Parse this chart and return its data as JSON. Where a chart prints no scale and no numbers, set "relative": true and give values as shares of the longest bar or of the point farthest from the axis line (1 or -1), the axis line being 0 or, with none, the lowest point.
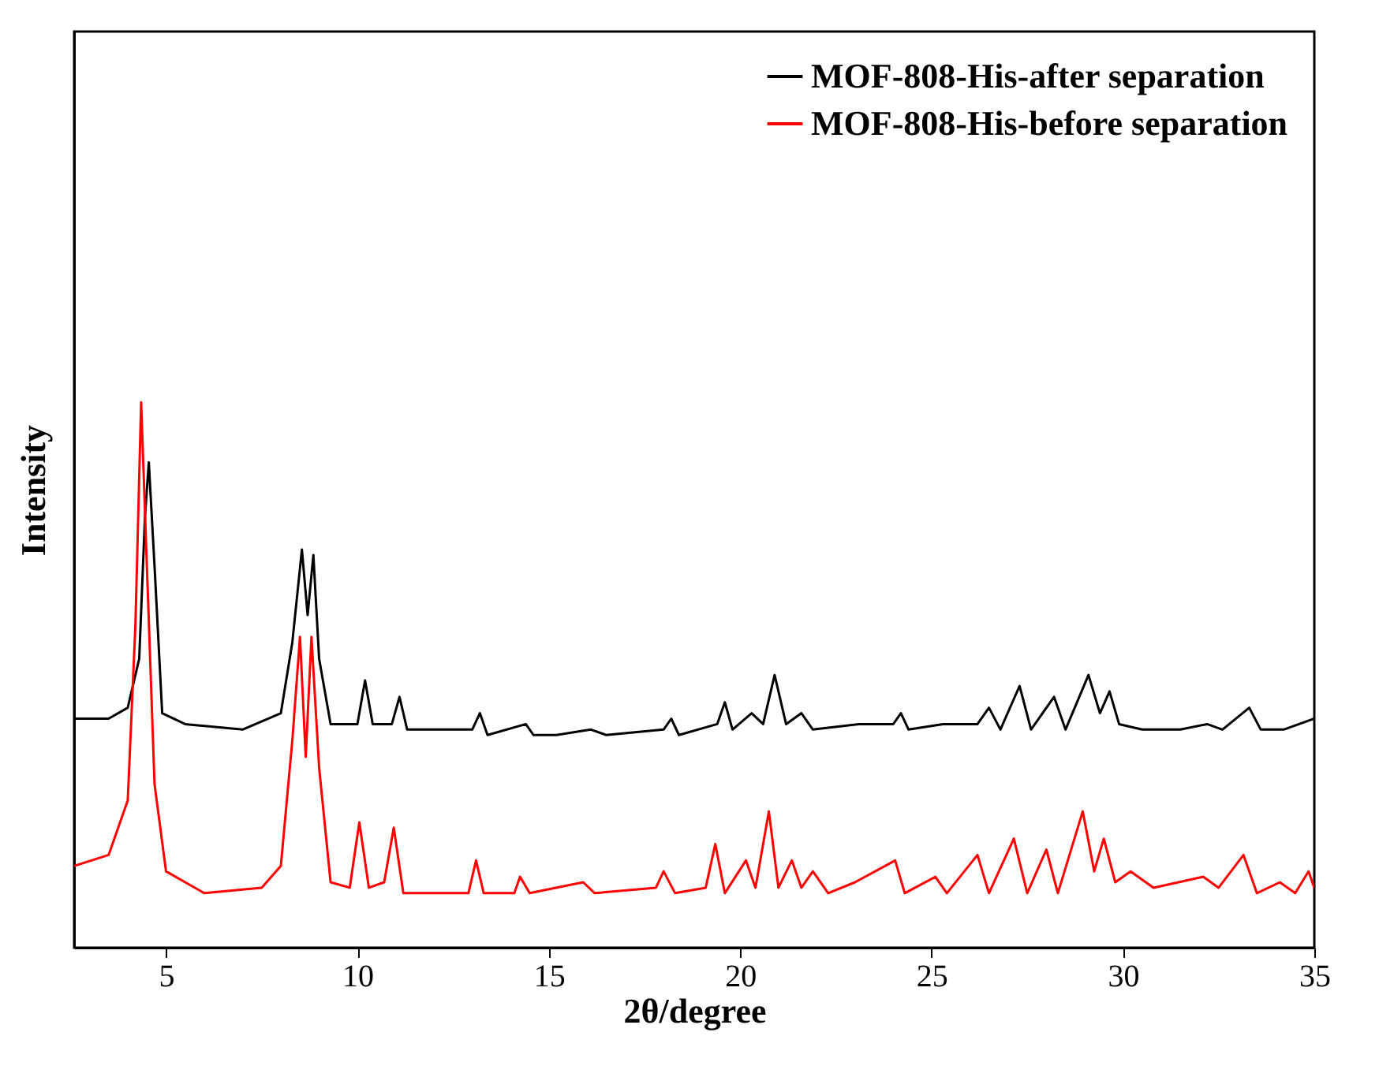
{
  "chart_data": {
    "type": "line",
    "xlabel": "2θ/degree",
    "ylabel": "Intensity",
    "relative": true,
    "xlim": [
      2.6,
      35
    ],
    "xticks": [
      5,
      10,
      15,
      20,
      25,
      30,
      35
    ],
    "grid": false,
    "legend": "top right",
    "marker": "none",
    "line_style": "solid",
    "series": [
      {
        "name": "MOF-808-His-after separation",
        "color": "#000000",
        "x": [
          2.6,
          3.5,
          4.0,
          4.3,
          4.45,
          4.55,
          4.7,
          4.9,
          5.5,
          7.0,
          8.0,
          8.3,
          8.55,
          8.7,
          8.85,
          9.0,
          9.3,
          10.0,
          10.2,
          10.4,
          10.9,
          11.1,
          11.3,
          13.0,
          13.2,
          13.4,
          14.4,
          14.6,
          15.2,
          16.1,
          16.5,
          18.0,
          18.2,
          18.4,
          19.4,
          19.6,
          19.8,
          20.3,
          20.6,
          20.9,
          21.2,
          21.6,
          21.9,
          23.1,
          24.0,
          24.2,
          24.4,
          25.3,
          26.2,
          26.5,
          26.8,
          27.3,
          27.6,
          28.2,
          28.5,
          29.1,
          29.4,
          29.65,
          29.9,
          30.5,
          31.5,
          32.2,
          32.6,
          33.3,
          33.6,
          34.2,
          35.0
        ],
        "values": [
          0.42,
          0.42,
          0.44,
          0.53,
          0.79,
          0.89,
          0.7,
          0.43,
          0.41,
          0.4,
          0.43,
          0.56,
          0.73,
          0.61,
          0.72,
          0.53,
          0.41,
          0.41,
          0.49,
          0.41,
          0.41,
          0.46,
          0.4,
          0.4,
          0.43,
          0.39,
          0.41,
          0.39,
          0.39,
          0.4,
          0.39,
          0.4,
          0.42,
          0.39,
          0.41,
          0.45,
          0.4,
          0.43,
          0.41,
          0.5,
          0.41,
          0.43,
          0.4,
          0.41,
          0.41,
          0.43,
          0.4,
          0.41,
          0.41,
          0.44,
          0.4,
          0.48,
          0.4,
          0.46,
          0.4,
          0.5,
          0.43,
          0.47,
          0.41,
          0.4,
          0.4,
          0.41,
          0.4,
          0.44,
          0.4,
          0.4,
          0.42
        ]
      },
      {
        "name": "MOF-808-His-before separation",
        "color": "#ff0000",
        "x": [
          2.6,
          3.5,
          4.0,
          4.2,
          4.35,
          4.5,
          4.7,
          5.0,
          6.0,
          7.5,
          8.0,
          8.3,
          8.5,
          8.65,
          8.8,
          9.0,
          9.3,
          9.8,
          10.05,
          10.3,
          10.7,
          10.95,
          11.2,
          12.9,
          13.1,
          13.3,
          14.1,
          14.25,
          14.5,
          15.9,
          16.2,
          17.8,
          18.0,
          18.3,
          19.1,
          19.35,
          19.6,
          20.15,
          20.4,
          20.75,
          21.0,
          21.35,
          21.6,
          21.9,
          22.3,
          23.0,
          24.05,
          24.3,
          25.1,
          25.4,
          26.2,
          26.5,
          27.15,
          27.5,
          28.0,
          28.3,
          28.95,
          29.25,
          29.5,
          29.8,
          30.2,
          30.8,
          32.1,
          32.5,
          33.15,
          33.5,
          34.1,
          34.5,
          34.85,
          35.0
        ],
        "values": [
          0.15,
          0.17,
          0.27,
          0.59,
          1,
          0.7,
          0.3,
          0.14,
          0.1,
          0.11,
          0.15,
          0.38,
          0.57,
          0.35,
          0.57,
          0.33,
          0.12,
          0.11,
          0.23,
          0.11,
          0.12,
          0.22,
          0.1,
          0.1,
          0.16,
          0.1,
          0.1,
          0.13,
          0.1,
          0.12,
          0.1,
          0.11,
          0.14,
          0.1,
          0.11,
          0.19,
          0.1,
          0.16,
          0.11,
          0.25,
          0.11,
          0.16,
          0.11,
          0.14,
          0.1,
          0.12,
          0.16,
          0.1,
          0.13,
          0.1,
          0.17,
          0.1,
          0.2,
          0.1,
          0.18,
          0.1,
          0.25,
          0.14,
          0.2,
          0.12,
          0.14,
          0.11,
          0.13,
          0.11,
          0.17,
          0.1,
          0.12,
          0.1,
          0.14,
          0.11
        ]
      }
    ]
  }
}
